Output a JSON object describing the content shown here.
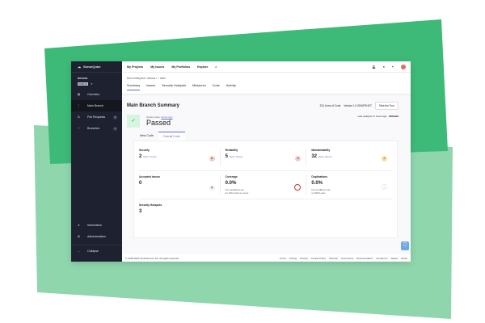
{
  "colors": {
    "dark_green": "#3dba78",
    "light_green": "#8fd6ad",
    "sidebar": "#1e2130",
    "accent": "#5d6cd0"
  },
  "sidebar": {
    "logo": "SonarQube",
    "logo_sub": "cloud",
    "project": "devoss",
    "visibility": "PUBLIC",
    "items": [
      {
        "label": "Overview",
        "icon": "overview-icon"
      },
      {
        "label": "Main Branch",
        "icon": "branch-icon"
      },
      {
        "label": "Pull Requests",
        "icon": "pull-request-icon",
        "count": "0"
      },
      {
        "label": "Branches",
        "icon": "branches-icon",
        "count": "1"
      }
    ],
    "bottom": [
      {
        "label": "Information",
        "icon": "info-icon"
      },
      {
        "label": "Administration",
        "icon": "gear-icon"
      }
    ],
    "collapse": "Collapse"
  },
  "topnav": {
    "items": [
      "My Projects",
      "My Issues",
      "My Portfolios",
      "Explore"
    ],
    "notif_count": "1"
  },
  "breadcrumb": "Devo enterprise / devoss / ⑂ main",
  "tabs": [
    "Summary",
    "Issues",
    "Security Hotspots",
    "Measures",
    "Code",
    "Activity"
  ],
  "summary": {
    "title": "Main Branch Summary",
    "loc": "234 Lines of Code",
    "version": "Version 1.0-SNAPSHOT",
    "tour": "Take the Tour",
    "quality_gate_label": "Quality Gate:",
    "quality_gate_name": "Sonar way",
    "status": "Passed",
    "last_analysis": "Last analysis 17 hours ago",
    "commit": "000bab9"
  },
  "code_tabs": [
    "New Code",
    "Overall Code"
  ],
  "metrics": [
    {
      "label": "Security",
      "value": "2",
      "unit": "Open issues",
      "rating": "E"
    },
    {
      "label": "Reliability",
      "value": "5",
      "unit": "Open issues",
      "rating": "E"
    },
    {
      "label": "Maintainability",
      "value": "32",
      "unit": "Open issues",
      "rating": "A"
    },
    {
      "label": "Accepted issues",
      "value": "0"
    },
    {
      "label": "Coverage",
      "value": "0.0%",
      "sub1": "No conditions set",
      "sub2": "on 106 Lines to cover"
    },
    {
      "label": "Duplications",
      "value": "0.0%",
      "sub1": "No conditions set",
      "sub2": "on 905 Lines"
    },
    {
      "label": "Security Hotspots",
      "value": "3"
    }
  ],
  "footer": {
    "copyright": "© 2018-2024 SonarSource SA. All rights reserved.",
    "links": [
      "Terms",
      "Pricing",
      "Privacy",
      "Cookie Policy",
      "Security",
      "Community",
      "Documentation",
      "Contact us",
      "Status",
      "About"
    ]
  }
}
